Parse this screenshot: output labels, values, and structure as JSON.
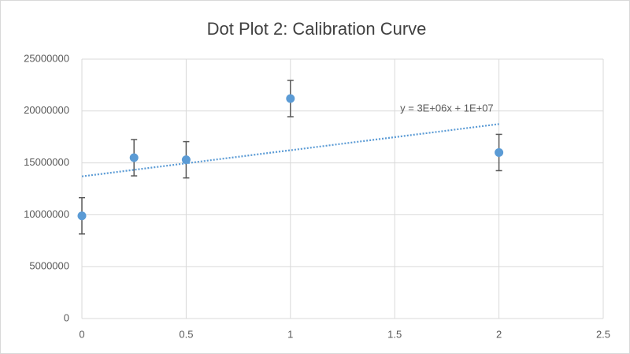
{
  "chart_data": {
    "type": "scatter",
    "title": "Dot Plot 2: Calibration Curve",
    "x": [
      0,
      0.25,
      0.5,
      1,
      2
    ],
    "series": [
      {
        "color": "#5b9bd5",
        "values": [
          9900000,
          15500000,
          15300000,
          21200000,
          16000000
        ],
        "errors": [
          1750000,
          1750000,
          1750000,
          1750000,
          1750000
        ]
      }
    ],
    "trendline": {
      "slope": 2520000,
      "intercept": 13700000,
      "xrange": [
        0,
        2
      ],
      "label": "y = 3E+06x + 1E+07",
      "color": "#5b9bd5"
    },
    "xlim": [
      0,
      2.5
    ],
    "xticks": [
      0,
      0.5,
      1,
      1.5,
      2,
      2.5
    ],
    "ylim": [
      0,
      25000000
    ],
    "yticks": [
      0,
      5000000,
      10000000,
      15000000,
      20000000,
      25000000
    ],
    "grid": true
  }
}
